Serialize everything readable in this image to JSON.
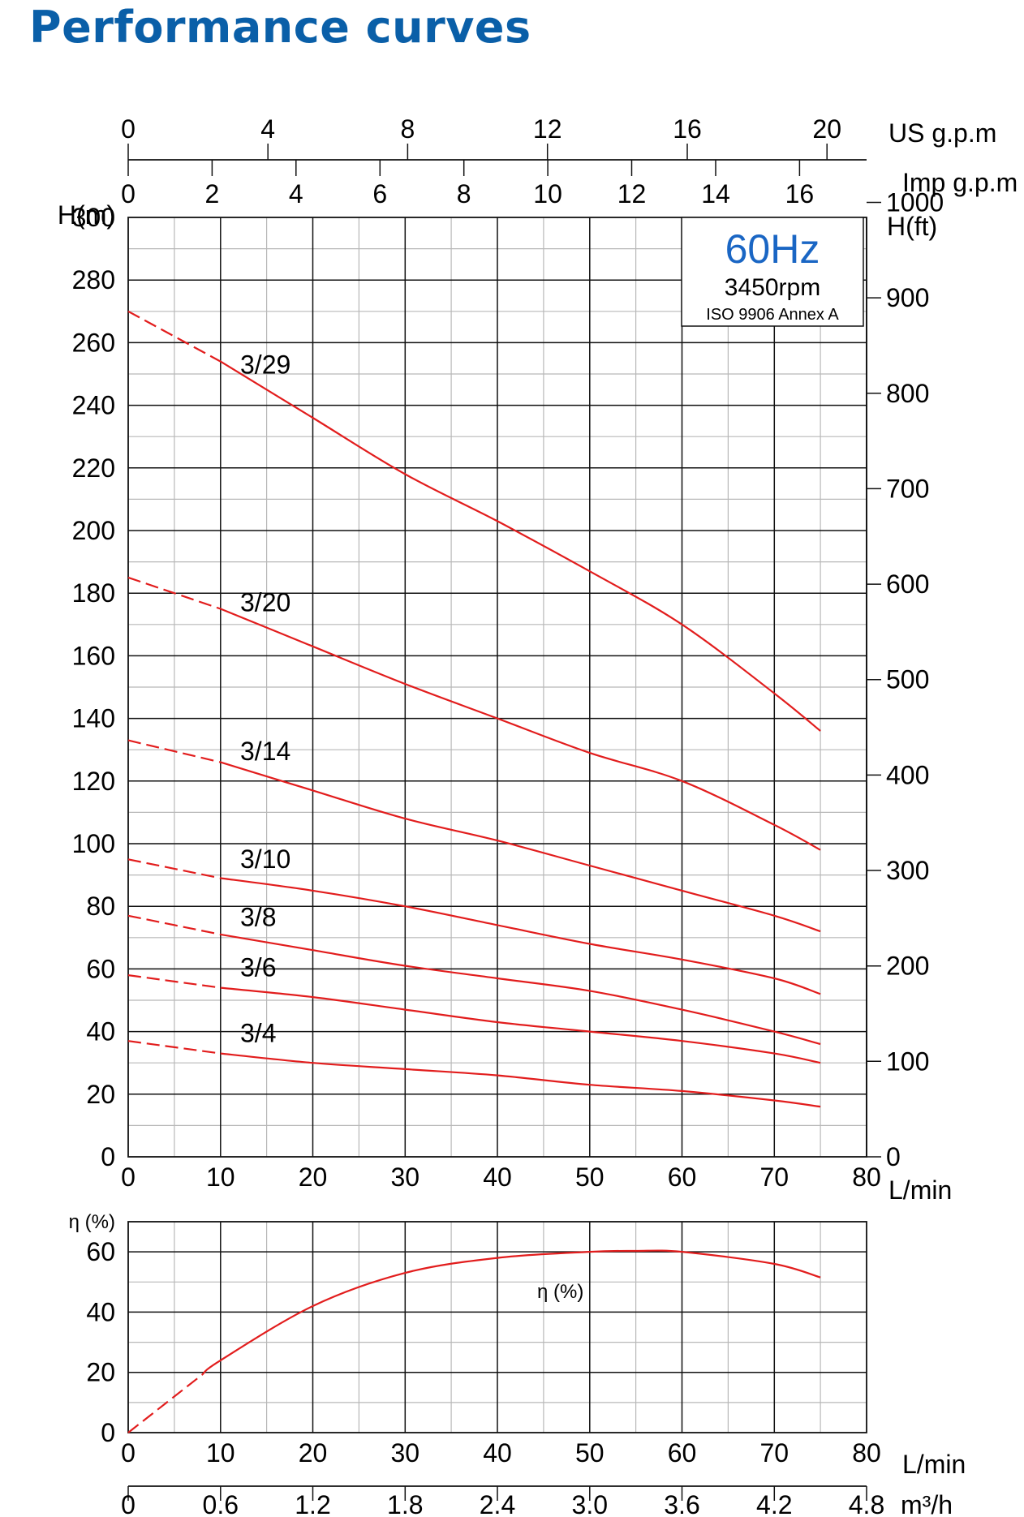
{
  "title": "Performance curves",
  "colors": {
    "title": "#0a5fa8",
    "badge_hz": "#1a66c4",
    "curve": "#e21d1d",
    "grid_major": "#111111",
    "grid_minor": "#b8b8b8"
  },
  "info_box": {
    "frequency": "60Hz",
    "speed": "3450rpm",
    "standard": "ISO 9906 Annex A"
  },
  "chart_data": [
    {
      "type": "line",
      "title": "",
      "xlabel": "L/min",
      "ylabel": "H(m)",
      "ylabel_right": "H(ft)",
      "top_axes": [
        {
          "label": "US g.p.m",
          "ticks": [
            "0",
            "4",
            "8",
            "12",
            "16",
            "20"
          ],
          "values_lpm": [
            0,
            15.14,
            30.28,
            45.42,
            60.57,
            75.71
          ]
        },
        {
          "label": "Imp g.p.m",
          "ticks": [
            "0",
            "2",
            "4",
            "6",
            "8",
            "10",
            "12",
            "14",
            "16"
          ],
          "values_lpm": [
            0,
            9.09,
            18.18,
            27.28,
            36.37,
            45.46,
            54.55,
            63.65,
            72.74
          ]
        }
      ],
      "xlim": [
        0,
        80
      ],
      "ylim": [
        0,
        300
      ],
      "x_ticks": [
        "0",
        "10",
        "20",
        "30",
        "40",
        "50",
        "60",
        "70",
        "80"
      ],
      "y_ticks": [
        "0",
        "20",
        "40",
        "60",
        "80",
        "100",
        "120",
        "140",
        "160",
        "180",
        "200",
        "220",
        "240",
        "260",
        "280",
        "300"
      ],
      "y_right_ticks": [
        "0",
        "100",
        "200",
        "300",
        "400",
        "500",
        "600",
        "700",
        "800",
        "900",
        "1000"
      ],
      "grid": true,
      "x": [
        0,
        10,
        20,
        30,
        40,
        50,
        60,
        70,
        75
      ],
      "series": [
        {
          "name": "3/29",
          "dashed_until_x": 10,
          "values": [
            270,
            254,
            236,
            218,
            203,
            187,
            170,
            148,
            136
          ]
        },
        {
          "name": "3/20",
          "dashed_until_x": 10,
          "values": [
            185,
            175,
            163,
            151,
            140,
            129,
            120,
            106,
            98
          ]
        },
        {
          "name": "3/14",
          "dashed_until_x": 10,
          "values": [
            133,
            126,
            117,
            108,
            101,
            93,
            85,
            77,
            72
          ]
        },
        {
          "name": "3/10",
          "dashed_until_x": 10,
          "values": [
            95,
            89,
            85,
            80,
            74,
            68,
            63,
            57,
            52
          ]
        },
        {
          "name": "3/8",
          "dashed_until_x": 10,
          "values": [
            77,
            71,
            66,
            61,
            57,
            53,
            47,
            40,
            36
          ]
        },
        {
          "name": "3/6",
          "dashed_until_x": 10,
          "values": [
            58,
            54,
            51,
            47,
            43,
            40,
            37,
            33,
            30
          ]
        },
        {
          "name": "3/4",
          "dashed_until_x": 10,
          "values": [
            37,
            33,
            30,
            28,
            26,
            23,
            21,
            18,
            16
          ]
        }
      ]
    },
    {
      "type": "line",
      "title": "",
      "xlabel": "L/min",
      "xlabel_secondary": "m³/h",
      "ylabel": "η (%)",
      "xlim": [
        0,
        80
      ],
      "ylim": [
        0,
        70
      ],
      "x_ticks": [
        "0",
        "10",
        "20",
        "30",
        "40",
        "50",
        "60",
        "70",
        "80"
      ],
      "x_secondary_ticks": [
        "0",
        "0.6",
        "1.2",
        "1.8",
        "2.4",
        "3.0",
        "3.6",
        "4.2",
        "4.8"
      ],
      "y_ticks": [
        "0",
        "20",
        "40",
        "60"
      ],
      "grid": true,
      "x": [
        0,
        10,
        20,
        30,
        40,
        50,
        55,
        60,
        70,
        75
      ],
      "series": [
        {
          "name": "η (%)",
          "dashed_until_x": 8,
          "values": [
            0,
            24,
            42,
            53,
            58,
            60,
            60.3,
            60,
            56,
            51.5
          ]
        }
      ]
    }
  ]
}
